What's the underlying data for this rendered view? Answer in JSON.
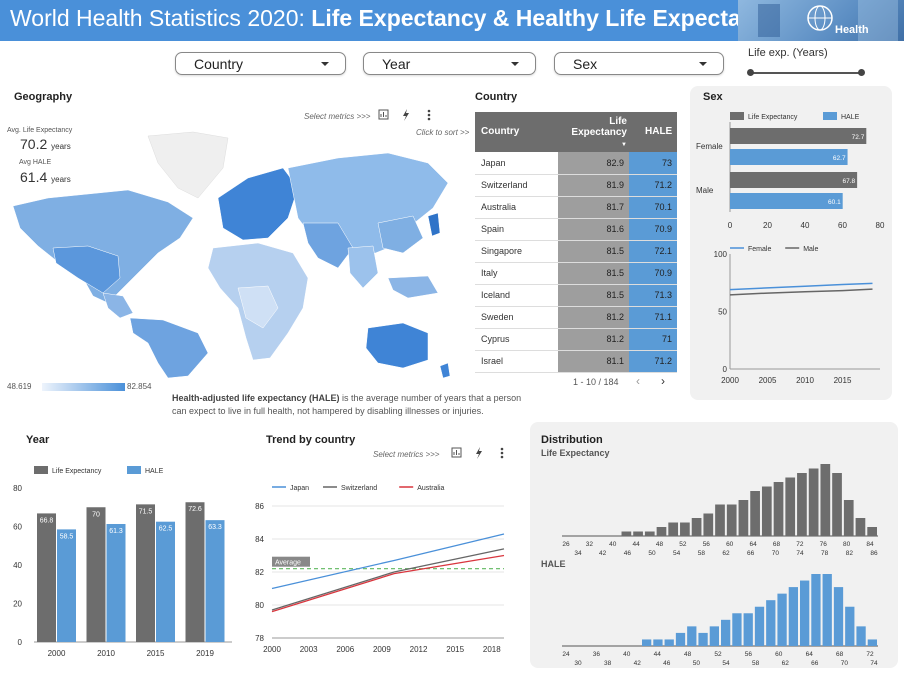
{
  "header": {
    "title_plain": "World Health Statistics 2020: ",
    "title_bold": "Life Expectancy & Healthy Life Expectancy",
    "logo_text": "Health",
    "colors": {
      "header_bg": "#4a90d9",
      "life_expectancy": "#6d6d6d",
      "hale": "#5a9bd6"
    }
  },
  "filters": {
    "country": "Country",
    "year": "Year",
    "sex": "Sex",
    "slider_label": "Life exp. (Years)"
  },
  "geography": {
    "title": "Geography",
    "select_metrics": "Select metrics >>>",
    "click_to_sort": "Click to sort >>",
    "avg_le_label": "Avg. Life Expectancy",
    "avg_le_value": "70.2",
    "avg_hale_label": "Avg HALE",
    "avg_hale_value": "61.4",
    "unit": "years",
    "legend_min": "48.619",
    "legend_max": "82.854",
    "description_bold": "Health-adjusted life expectancy (HALE)",
    "description_rest": " is the average number of years that a person",
    "description_line2": "can expect to live in full health, not hampered by disabling illnesses or injuries."
  },
  "country_table": {
    "title": "Country",
    "col_country": "Country",
    "col_le_1": "Life",
    "col_le_2": "Expectancy",
    "col_hale": "HALE",
    "rows": [
      {
        "country": "Japan",
        "le": "82.9",
        "hale": "73"
      },
      {
        "country": "Switzerland",
        "le": "81.9",
        "hale": "71.2"
      },
      {
        "country": "Australia",
        "le": "81.7",
        "hale": "70.1"
      },
      {
        "country": "Spain",
        "le": "81.6",
        "hale": "70.9"
      },
      {
        "country": "Singapore",
        "le": "81.5",
        "hale": "72.1"
      },
      {
        "country": "Italy",
        "le": "81.5",
        "hale": "70.9"
      },
      {
        "country": "Iceland",
        "le": "81.5",
        "hale": "71.3"
      },
      {
        "country": "Sweden",
        "le": "81.2",
        "hale": "71.1"
      },
      {
        "country": "Cyprus",
        "le": "81.2",
        "hale": "71"
      },
      {
        "country": "Israel",
        "le": "81.1",
        "hale": "71.2"
      }
    ],
    "pagination": "1 - 10 / 184"
  },
  "chart_data": [
    {
      "id": "sex_bar",
      "type": "bar",
      "title": "Sex",
      "orientation": "horizontal",
      "categories": [
        "Female",
        "Male"
      ],
      "series": [
        {
          "name": "Life Expectancy",
          "values": [
            72.7,
            67.8
          ]
        },
        {
          "name": "HALE",
          "values": [
            62.7,
            60.1
          ]
        }
      ],
      "xlim": [
        0,
        80
      ],
      "xticks": [
        0,
        20,
        40,
        60,
        80
      ]
    },
    {
      "id": "sex_line",
      "type": "line",
      "x": [
        2000,
        2005,
        2010,
        2015,
        2019
      ],
      "series": [
        {
          "name": "Female",
          "values": [
            69,
            70.5,
            72,
            73.5,
            74.5
          ]
        },
        {
          "name": "Male",
          "values": [
            64.5,
            66,
            67.2,
            68.2,
            69.5
          ]
        }
      ],
      "ylim": [
        0,
        100
      ],
      "yticks": [
        0,
        50,
        100
      ],
      "xticks": [
        2000,
        2005,
        2010,
        2015
      ]
    },
    {
      "id": "year_bar",
      "type": "bar",
      "title": "Year",
      "categories": [
        "2000",
        "2010",
        "2015",
        "2019"
      ],
      "series": [
        {
          "name": "Life Expectancy",
          "values": [
            66.8,
            70,
            71.5,
            72.6
          ]
        },
        {
          "name": "HALE",
          "values": [
            58.5,
            61.3,
            62.5,
            63.3
          ]
        }
      ],
      "ylim": [
        0,
        80
      ],
      "yticks": [
        0,
        20,
        40,
        60,
        80
      ]
    },
    {
      "id": "trend",
      "type": "line",
      "title": "Trend by country",
      "select_metrics": "Select metrics >>>",
      "x": [
        2000,
        2010,
        2019
      ],
      "series": [
        {
          "name": "Japan",
          "values": [
            81,
            82.7,
            84.3
          ]
        },
        {
          "name": "Switzerland",
          "values": [
            79.7,
            82,
            83.4
          ]
        },
        {
          "name": "Australia",
          "values": [
            79.6,
            81.9,
            83
          ]
        }
      ],
      "reference_line": {
        "label": "Average",
        "value": 82.2
      },
      "ylim": [
        78,
        86
      ],
      "yticks": [
        78,
        80,
        82,
        84,
        86
      ],
      "xticks": [
        2000,
        2003,
        2006,
        2009,
        2012,
        2015,
        2018
      ]
    },
    {
      "id": "distribution_le",
      "type": "bar",
      "title": "Distribution",
      "subtitle": "Life Expectancy",
      "values": [
        0,
        0,
        0,
        0,
        0,
        1,
        1,
        1,
        2,
        3,
        3,
        4,
        5,
        7,
        7,
        8,
        10,
        11,
        12,
        13,
        14,
        15,
        16,
        14,
        8,
        4,
        2
      ],
      "xtick_labels_top": [
        "26",
        "32",
        "40",
        "44",
        "48",
        "52",
        "56",
        "60",
        "64",
        "68",
        "72",
        "76",
        "80",
        "84"
      ],
      "xtick_labels_bottom": [
        "34",
        "42",
        "46",
        "50",
        "54",
        "58",
        "62",
        "66",
        "70",
        "74",
        "78",
        "82",
        "86"
      ]
    },
    {
      "id": "distribution_hale",
      "type": "bar",
      "subtitle": "HALE",
      "values": [
        0,
        0,
        0,
        0,
        0,
        0,
        0,
        1,
        1,
        1,
        2,
        3,
        2,
        3,
        4,
        5,
        5,
        6,
        7,
        8,
        9,
        10,
        11,
        11,
        9,
        6,
        3,
        1
      ],
      "xtick_labels_top": [
        "24",
        "36",
        "40",
        "44",
        "48",
        "52",
        "56",
        "60",
        "64",
        "68",
        "72"
      ],
      "xtick_labels_bottom": [
        "30",
        "38",
        "42",
        "46",
        "50",
        "54",
        "58",
        "62",
        "66",
        "70",
        "74"
      ]
    }
  ]
}
